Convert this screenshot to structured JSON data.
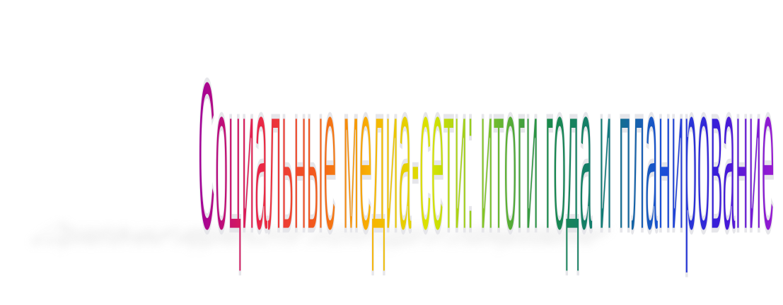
{
  "art": {
    "text": "Социальные медиа-сети: итоги года и планирование",
    "gradient_stops": [
      "#a0009a",
      "#e8234a",
      "#f25a1d",
      "#f8b400",
      "#d8e400",
      "#7cc22a",
      "#1a8a4a",
      "#117a75",
      "#1a4fd6",
      "#3a1ad8",
      "#a01ad0"
    ],
    "outline_color": "#e6e6ea",
    "shadow_color": "#cfcfcf"
  }
}
